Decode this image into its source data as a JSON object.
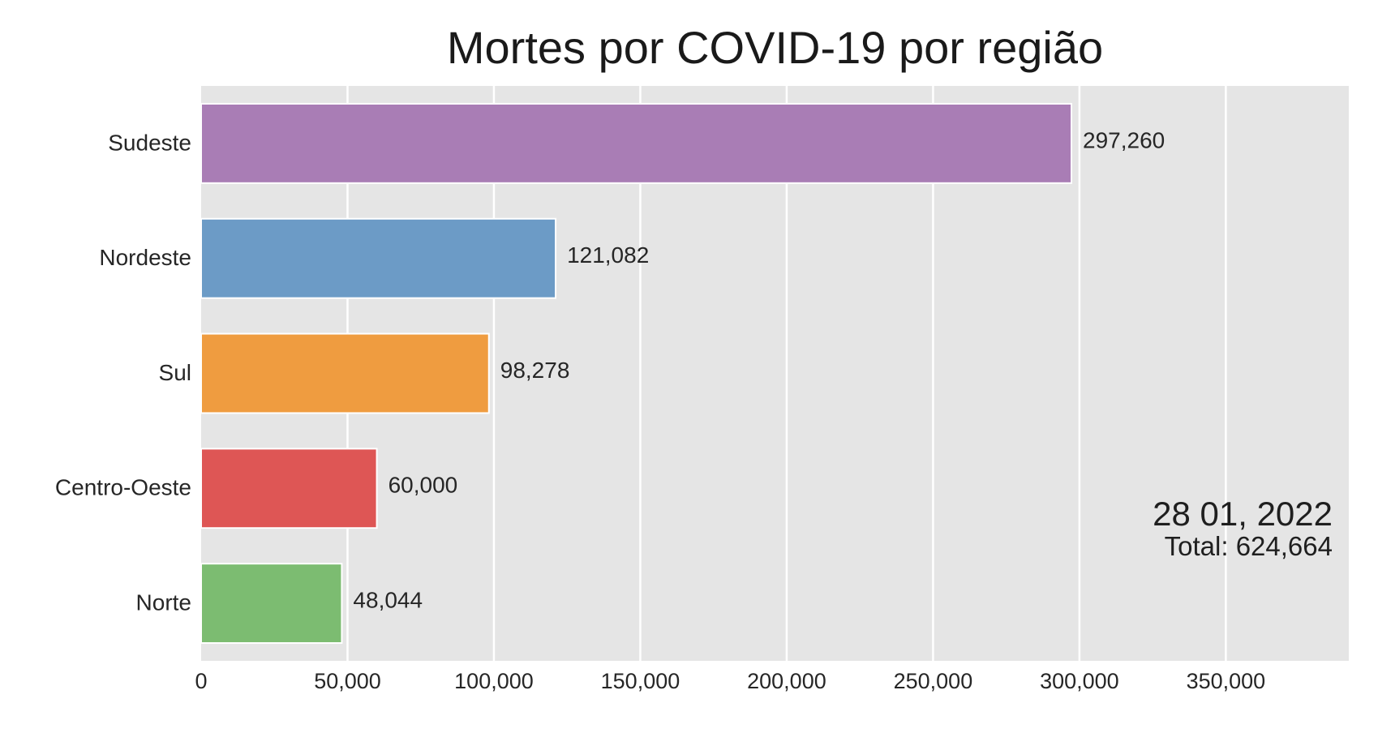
{
  "chart_data": {
    "type": "bar",
    "orientation": "horizontal",
    "title": "Mortes por COVID-19 por região",
    "categories": [
      "Sudeste",
      "Nordeste",
      "Sul",
      "Centro-Oeste",
      "Norte"
    ],
    "values": [
      297260,
      121082,
      98278,
      60000,
      48044
    ],
    "value_labels": [
      "297,260",
      "121,082",
      "98,278",
      "60,000",
      "48,044"
    ],
    "colors": [
      "#a97db5",
      "#6c9bc6",
      "#ef9c40",
      "#de5655",
      "#7cbc71"
    ],
    "xlim": [
      0,
      392000
    ],
    "xticks": [
      0,
      50000,
      100000,
      150000,
      200000,
      250000,
      300000,
      350000
    ],
    "xtick_labels": [
      "0",
      "50,000",
      "100,000",
      "150,000",
      "200,000",
      "250,000",
      "300,000",
      "350,000"
    ],
    "grid": true,
    "xlabel": "",
    "ylabel": "",
    "annotation": {
      "date": "28 01, 2022",
      "total": "Total: 624,664"
    }
  }
}
